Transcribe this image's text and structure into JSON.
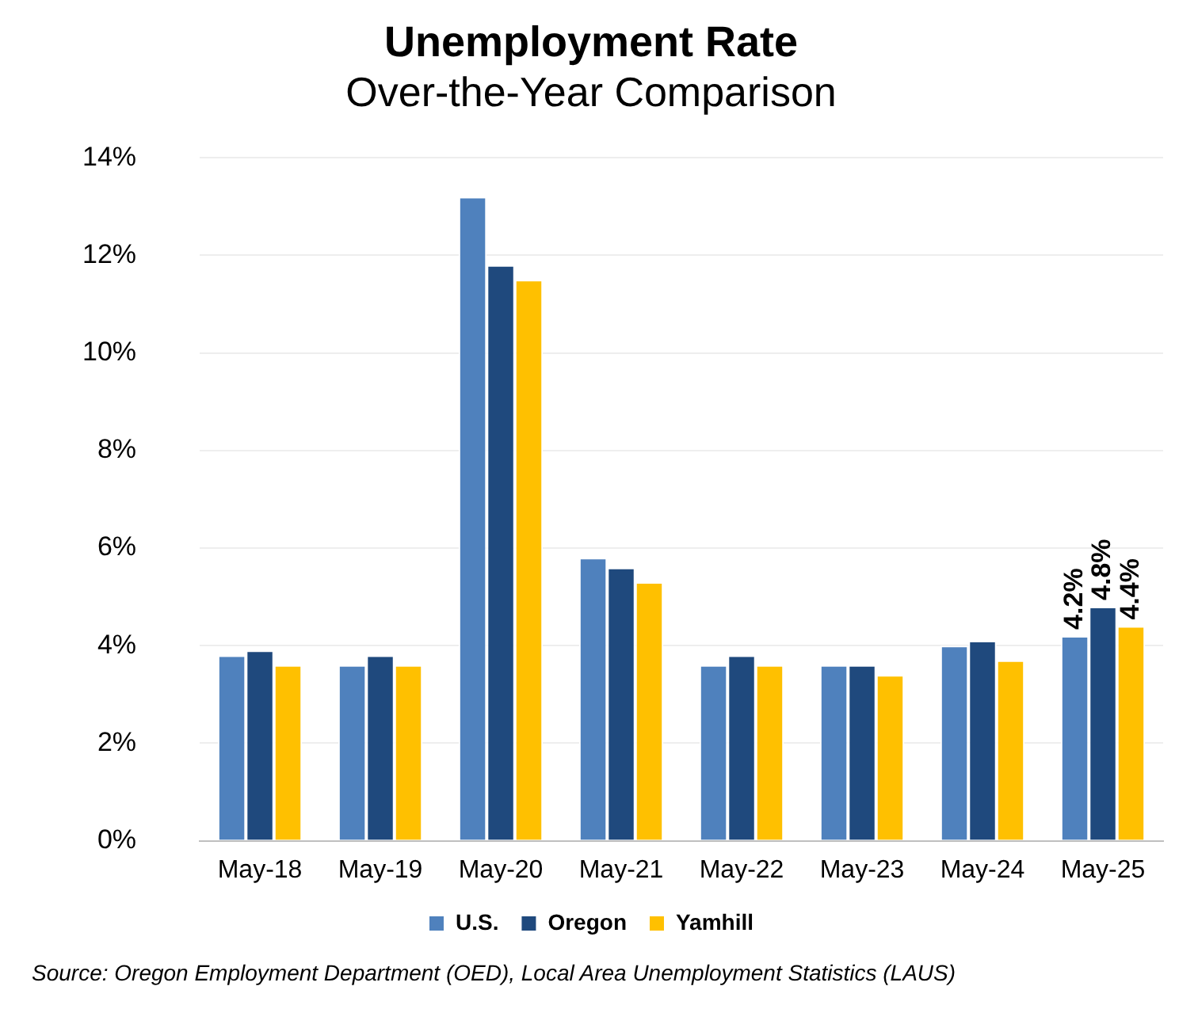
{
  "chart_data": {
    "type": "bar",
    "title": "Unemployment Rate",
    "subtitle": "Over-the-Year Comparison",
    "categories": [
      "May-18",
      "May-19",
      "May-20",
      "May-21",
      "May-22",
      "May-23",
      "May-24",
      "May-25"
    ],
    "series": [
      {
        "name": "U.S.",
        "color": "#4f81bd",
        "values": [
          3.8,
          3.6,
          13.2,
          5.8,
          3.6,
          3.6,
          4.0,
          4.2
        ],
        "value_labels": [
          null,
          null,
          null,
          null,
          null,
          null,
          null,
          "4.2%"
        ]
      },
      {
        "name": "Oregon",
        "color": "#1f497d",
        "values": [
          3.9,
          3.8,
          11.8,
          5.6,
          3.8,
          3.6,
          4.1,
          4.8
        ],
        "value_labels": [
          null,
          null,
          null,
          null,
          null,
          null,
          null,
          "4.8%"
        ]
      },
      {
        "name": "Yamhill",
        "color": "#ffc000",
        "values": [
          3.6,
          3.6,
          11.5,
          5.3,
          3.6,
          3.4,
          3.7,
          4.4
        ],
        "value_labels": [
          null,
          null,
          null,
          null,
          null,
          null,
          null,
          "4.4%"
        ]
      }
    ],
    "ylim": [
      0,
      14
    ],
    "yticks": [
      {
        "value": 0,
        "label": "0%"
      },
      {
        "value": 2,
        "label": "2%"
      },
      {
        "value": 4,
        "label": "4%"
      },
      {
        "value": 6,
        "label": "6%"
      },
      {
        "value": 8,
        "label": "8%"
      },
      {
        "value": 10,
        "label": "10%"
      },
      {
        "value": 12,
        "label": "12%"
      },
      {
        "value": 14,
        "label": "14%"
      }
    ],
    "grid": "y",
    "legend": "bottom",
    "annotations": [
      "Source: Oregon Employment Department (OED), Local Area Unemployment Statistics (LAUS)"
    ]
  }
}
